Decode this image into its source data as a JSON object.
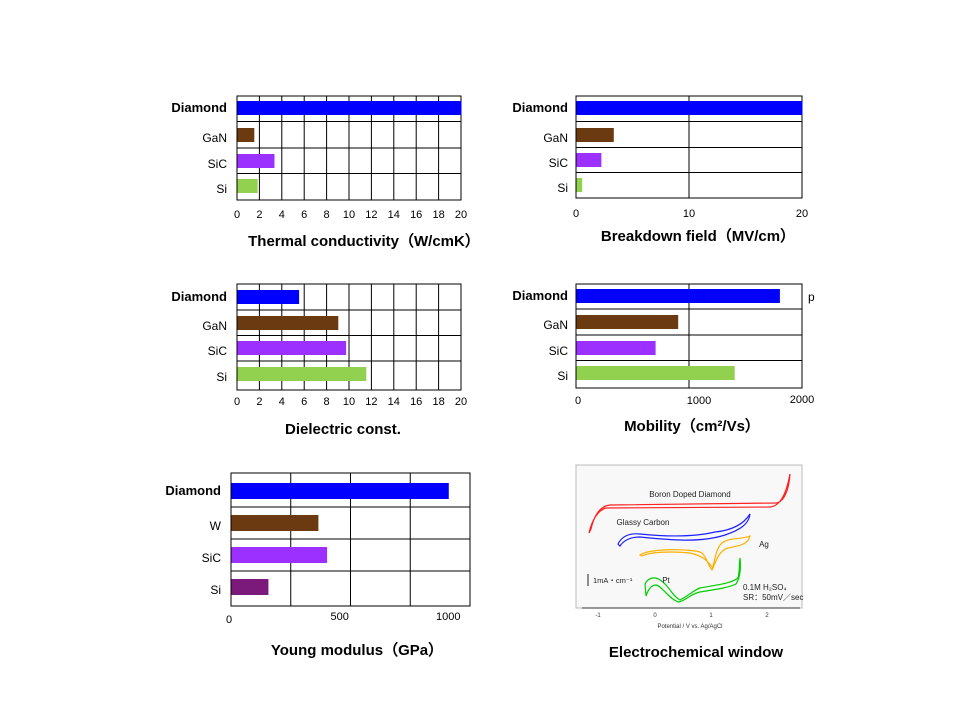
{
  "colors": {
    "diamond": "#0000ff",
    "gan": "#6b3a11",
    "w": "#6b3a11",
    "sic": "#9b30ff",
    "si": "#92d050",
    "si_young": "#7b1a7b",
    "highlight_label": "#1f1fb8"
  },
  "chart_data": [
    {
      "type": "bar",
      "orientation": "horizontal",
      "title": "Thermal conductivity（W/cmK）",
      "categories": [
        "Diamond",
        "GaN",
        "SiC",
        "Si"
      ],
      "values": [
        20,
        1.5,
        3.3,
        1.8
      ],
      "xlim": [
        0,
        20
      ],
      "xticks": [
        "0",
        "2",
        "4",
        "6",
        "8",
        "10",
        "12",
        "14",
        "16",
        "18",
        "20"
      ],
      "grid": true
    },
    {
      "type": "bar",
      "orientation": "horizontal",
      "title": "Breakdown field（MV/cm）",
      "categories": [
        "Diamond",
        "GaN",
        "SiC",
        "Si"
      ],
      "values": [
        20,
        3.3,
        2.2,
        0.5
      ],
      "xlim": [
        0,
        20
      ],
      "xticks": [
        "0",
        "10",
        "20"
      ],
      "grid": true
    },
    {
      "type": "bar",
      "orientation": "horizontal",
      "title": "Dielectric const.",
      "categories": [
        "Diamond",
        "GaN",
        "SiC",
        "Si"
      ],
      "values": [
        5.5,
        9,
        9.7,
        11.5
      ],
      "xlim": [
        0,
        20
      ],
      "xticks": [
        "0",
        "2",
        "4",
        "6",
        "8",
        "10",
        "12",
        "14",
        "16",
        "18",
        "20"
      ],
      "grid": true
    },
    {
      "type": "bar",
      "orientation": "horizontal",
      "title": "Mobility（cm²/Vs）",
      "categories": [
        "Diamond",
        "GaN",
        "SiC",
        "Si"
      ],
      "values": [
        1800,
        900,
        700,
        1400
      ],
      "xlim": [
        0,
        2000
      ],
      "xticks": [
        "0",
        "1000",
        "2000"
      ],
      "annotation": "p",
      "grid": true
    },
    {
      "type": "bar",
      "orientation": "horizontal",
      "title": "Young modulus（GPa）",
      "categories": [
        "Diamond",
        "W",
        "SiC",
        "Si"
      ],
      "values": [
        1000,
        400,
        440,
        170
      ],
      "xlim": [
        0,
        1100
      ],
      "xticks": [
        "0",
        "500",
        "1000"
      ],
      "grid": true
    }
  ],
  "electrochem": {
    "title": "Electrochemical window",
    "curve_labels": {
      "boron": "Boron Doped Diamond",
      "glassy": "Glassy Carbon",
      "ag": "Ag",
      "pt": "Pt"
    },
    "scale_label": "1mA・cm⁻¹",
    "electrolyte": "0.1M H₂SO₄",
    "scan_rate": "SR：50mV／sec",
    "axis_label": "Potential / V vs. Ag/AgCl",
    "ticks": [
      "-1",
      "0",
      "1",
      "2"
    ],
    "colors": {
      "boron": "#ff2020",
      "glassy": "#2020ff",
      "ag": "#ffb000",
      "pt": "#00d000"
    }
  }
}
